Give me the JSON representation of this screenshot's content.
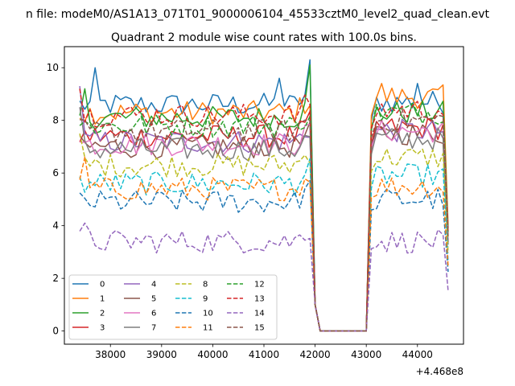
{
  "suptitle": "n file: modeM0/AS1A13_071T01_9000006104_45533cztM0_level2_quad_clean.evt",
  "chart_data": {
    "type": "line",
    "title": "Quadrant 2 module wise count rates with 100.0s bins.",
    "xlabel": "",
    "ylabel": "",
    "x_offset_label": "+4.468e8",
    "xlim": [
      37100,
      44900
    ],
    "ylim": [
      -0.5,
      10.8
    ],
    "x_ticks": [
      38000,
      39000,
      40000,
      41000,
      42000,
      43000,
      44000
    ],
    "x_tick_labels": [
      "38000",
      "39000",
      "40000",
      "41000",
      "42000",
      "43000",
      "44000"
    ],
    "y_ticks": [
      0,
      2,
      4,
      6,
      8,
      10
    ],
    "y_tick_labels": [
      "0",
      "2",
      "4",
      "6",
      "8",
      "10"
    ],
    "grid": false,
    "legend_position": "lower left",
    "legend_columns": 4,
    "segments": [
      {
        "x_start": 37400,
        "x_end": 41900,
        "step": 100
      },
      {
        "x_start": 42000,
        "x_end": 42000,
        "step": 100
      },
      {
        "x_start": 42100,
        "x_end": 43000,
        "step": 100
      },
      {
        "x_start": 43100,
        "x_end": 44600,
        "step": 100
      }
    ],
    "series": [
      {
        "name": "0",
        "color": "#1f77b4",
        "dash": "solid",
        "level_a": 8.6,
        "level_b": 8.7,
        "spikes": [
          [
            37700,
            10.0
          ],
          [
            41300,
            9.6
          ],
          [
            41900,
            10.3
          ],
          [
            44000,
            9.4
          ]
        ]
      },
      {
        "name": "1",
        "color": "#ff7f0e",
        "dash": "solid",
        "level_a": 8.3,
        "level_b": 8.9,
        "spikes": [
          [
            43300,
            9.4
          ]
        ]
      },
      {
        "name": "2",
        "color": "#2ca02c",
        "dash": "solid",
        "level_a": 8.1,
        "level_b": 8.3,
        "spikes": [
          [
            37500,
            9.2
          ],
          [
            41900,
            10.1
          ]
        ]
      },
      {
        "name": "3",
        "color": "#d62728",
        "dash": "solid",
        "level_a": 7.4,
        "level_b": 7.7,
        "spikes": []
      },
      {
        "name": "4",
        "color": "#9467bd",
        "dash": "solid",
        "level_a": 7.2,
        "level_b": 7.6,
        "spikes": [
          [
            37400,
            9.3
          ]
        ]
      },
      {
        "name": "5",
        "color": "#8c564b",
        "dash": "solid",
        "level_a": 7.0,
        "level_b": 7.5,
        "spikes": []
      },
      {
        "name": "6",
        "color": "#e377c2",
        "dash": "solid",
        "level_a": 7.1,
        "level_b": 7.6,
        "spikes": []
      },
      {
        "name": "7",
        "color": "#7f7f7f",
        "dash": "solid",
        "level_a": 6.9,
        "level_b": 7.3,
        "spikes": [
          [
            37400,
            8.5
          ]
        ]
      },
      {
        "name": "8",
        "color": "#bcbd22",
        "dash": "dashed",
        "level_a": 6.3,
        "level_b": 6.6,
        "spikes": [
          [
            37400,
            7.5
          ]
        ]
      },
      {
        "name": "9",
        "color": "#17becf",
        "dash": "dashed",
        "level_a": 5.6,
        "level_b": 5.9,
        "spikes": []
      },
      {
        "name": "10",
        "color": "#1f77b4",
        "dash": "dashed",
        "level_a": 4.9,
        "level_b": 5.0,
        "spikes": []
      },
      {
        "name": "11",
        "color": "#ff7f0e",
        "dash": "dashed",
        "level_a": 5.4,
        "level_b": 5.5,
        "spikes": [
          [
            37500,
            6.6
          ]
        ]
      },
      {
        "name": "12",
        "color": "#2ca02c",
        "dash": "dashed",
        "level_a": 7.8,
        "level_b": 8.3,
        "spikes": []
      },
      {
        "name": "13",
        "color": "#d62728",
        "dash": "dashed",
        "level_a": 8.2,
        "level_b": 8.4,
        "spikes": [
          [
            37400,
            9.2
          ]
        ]
      },
      {
        "name": "14",
        "color": "#9467bd",
        "dash": "dashed",
        "level_a": 3.4,
        "level_b": 3.4,
        "spikes": [
          [
            37500,
            4.1
          ]
        ]
      },
      {
        "name": "15",
        "color": "#8c564b",
        "dash": "dashed",
        "level_a": 7.6,
        "level_b": 8.0,
        "spikes": []
      }
    ]
  }
}
